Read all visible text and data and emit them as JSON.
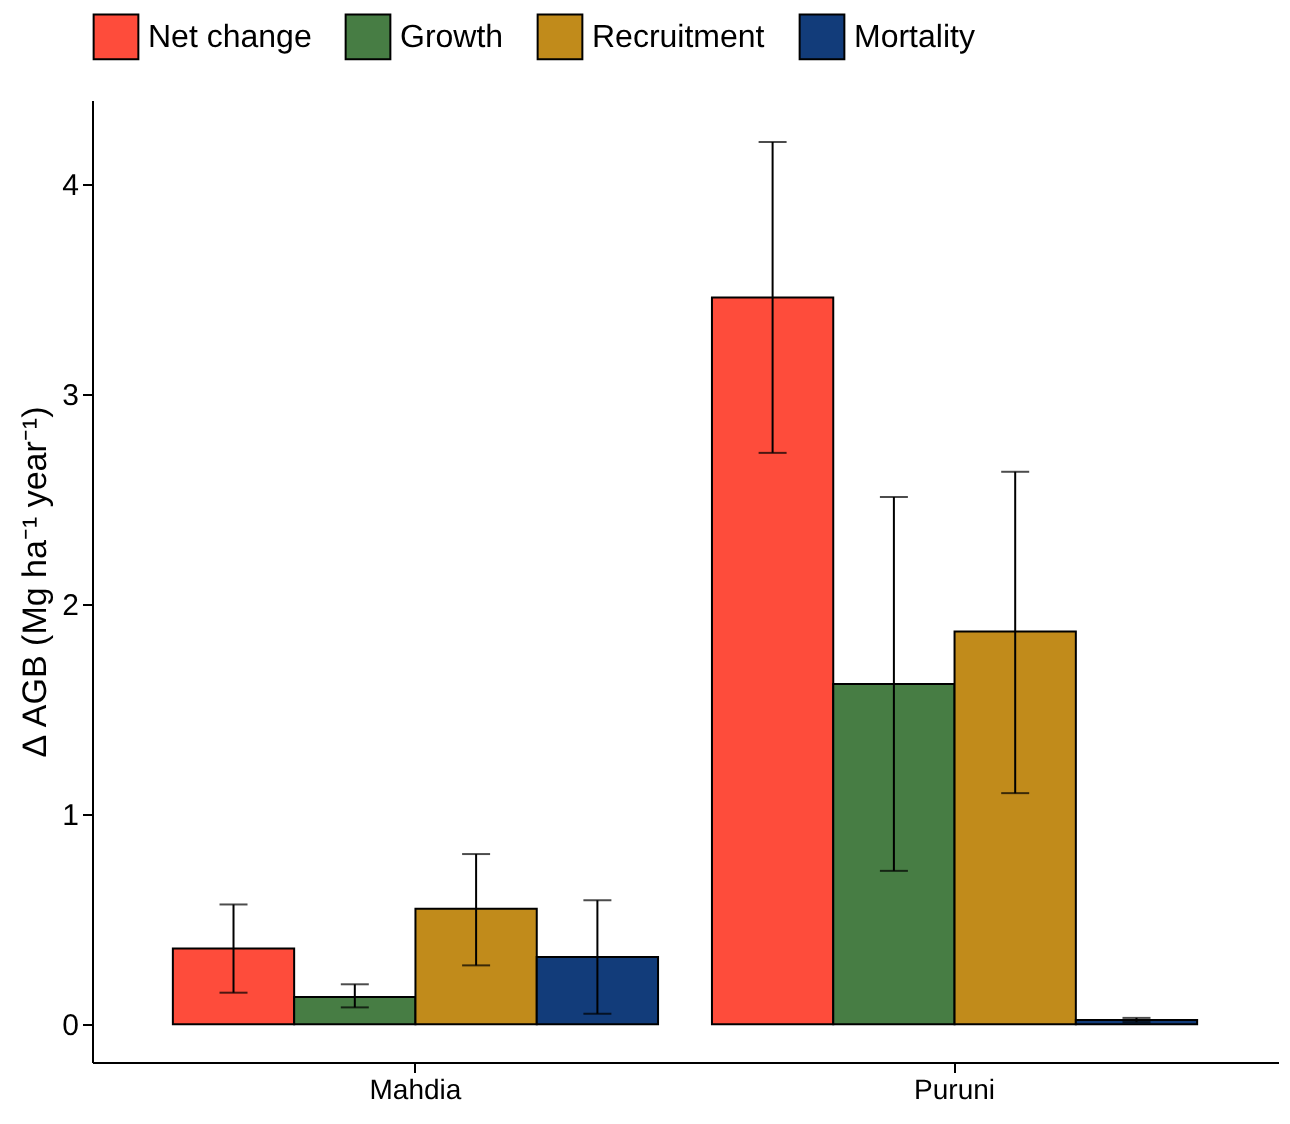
{
  "chart_data": {
    "type": "bar",
    "ylabel": "Δ AGB (Mg ha⁻¹ year⁻¹)",
    "categories": [
      "Mahdia",
      "Puruni"
    ],
    "series": [
      {
        "name": "Net change",
        "color": "#fe4c3b",
        "values": [
          0.36,
          3.46
        ],
        "errors": [
          [
            0.15,
            0.57
          ],
          [
            2.72,
            4.2
          ]
        ]
      },
      {
        "name": "Growth",
        "color": "#477d44",
        "values": [
          0.13,
          1.62
        ],
        "errors": [
          [
            0.08,
            0.19
          ],
          [
            0.73,
            2.51
          ]
        ]
      },
      {
        "name": "Recruitment",
        "color": "#c18b1b",
        "values": [
          0.55,
          1.87
        ],
        "errors": [
          [
            0.28,
            0.81
          ],
          [
            1.1,
            2.63
          ]
        ]
      },
      {
        "name": "Mortality",
        "color": "#123c7a",
        "values": [
          0.32,
          0.02
        ],
        "errors": [
          [
            0.05,
            0.59
          ],
          [
            0.01,
            0.03
          ]
        ]
      }
    ],
    "ylim": [
      -0.18,
      4.4
    ],
    "yticks": [
      0,
      1,
      2,
      3,
      4
    ],
    "grid": false,
    "legend": "top"
  }
}
